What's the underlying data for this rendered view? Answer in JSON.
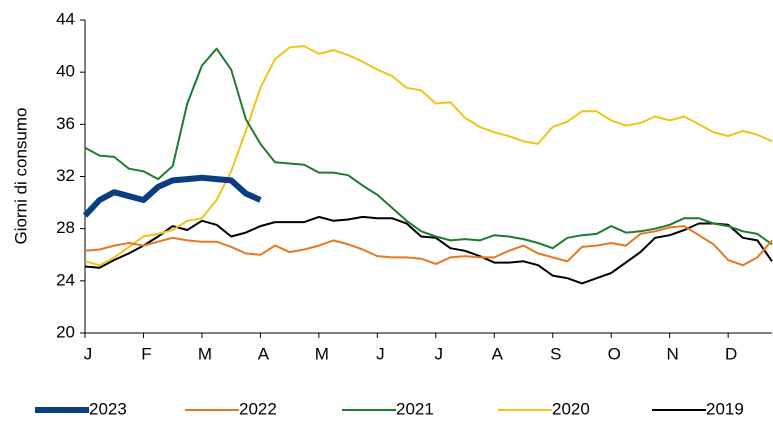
{
  "chart_data": {
    "type": "line",
    "y_label": "Giorni di consumo",
    "categories": [
      "J",
      null,
      null,
      null,
      "F",
      null,
      null,
      null,
      "M",
      null,
      null,
      null,
      "A",
      null,
      null,
      null,
      "M",
      null,
      null,
      null,
      "J",
      null,
      null,
      null,
      "J",
      null,
      null,
      null,
      "A",
      null,
      null,
      null,
      "S",
      null,
      null,
      null,
      "O",
      null,
      null,
      null,
      "N",
      null,
      null,
      null,
      "D",
      null,
      null,
      null
    ],
    "ylim": [
      20,
      44
    ],
    "yticks": [
      20,
      24,
      28,
      32,
      36,
      40,
      44
    ],
    "series": [
      {
        "name": "2023",
        "color": "#0b3d82",
        "values": [
          29.0,
          30.2,
          30.8,
          30.5,
          30.2,
          31.2,
          31.7,
          31.8,
          31.9,
          31.8,
          31.7,
          30.7,
          30.2,
          null,
          null,
          null,
          null,
          null,
          null,
          null,
          null,
          null,
          null,
          null,
          null,
          null,
          null,
          null,
          null,
          null,
          null,
          null,
          null,
          null,
          null,
          null,
          null,
          null,
          null,
          null,
          null,
          null,
          null,
          null,
          null,
          null,
          null,
          null
        ]
      },
      {
        "name": "2022",
        "color": "#e87722",
        "values": [
          26.3,
          26.4,
          26.7,
          26.9,
          26.7,
          27.0,
          27.3,
          27.1,
          27.0,
          27.0,
          26.6,
          26.1,
          26.0,
          26.7,
          26.2,
          26.4,
          26.7,
          27.1,
          26.8,
          26.4,
          25.9,
          25.8,
          25.8,
          25.7,
          25.3,
          25.8,
          25.9,
          25.8,
          25.8,
          26.3,
          26.7,
          26.1,
          25.8,
          25.5,
          26.6,
          26.7,
          26.9,
          26.7,
          27.6,
          27.8,
          28.1,
          28.2,
          27.5,
          26.8,
          25.6,
          25.2,
          25.8,
          27.1
        ]
      },
      {
        "name": "2021",
        "color": "#1e7b2f",
        "values": [
          34.2,
          33.6,
          33.5,
          32.6,
          32.4,
          31.8,
          32.8,
          37.6,
          40.5,
          41.8,
          40.2,
          36.4,
          34.5,
          33.1,
          33.0,
          32.9,
          32.3,
          32.3,
          32.1,
          31.3,
          30.6,
          29.6,
          28.6,
          27.8,
          27.4,
          27.1,
          27.2,
          27.1,
          27.5,
          27.4,
          27.2,
          26.9,
          26.5,
          27.3,
          27.5,
          27.6,
          28.2,
          27.7,
          27.8,
          28.0,
          28.3,
          28.8,
          28.8,
          28.4,
          28.2,
          27.8,
          27.6,
          26.8
        ]
      },
      {
        "name": "2020",
        "color": "#f0c419",
        "values": [
          25.5,
          25.2,
          25.8,
          26.6,
          27.4,
          27.6,
          27.9,
          28.6,
          28.8,
          30.2,
          32.4,
          35.5,
          38.8,
          41.0,
          41.9,
          42.0,
          41.4,
          41.7,
          41.3,
          40.8,
          40.2,
          39.7,
          38.8,
          38.6,
          37.6,
          37.7,
          36.5,
          35.8,
          35.4,
          35.1,
          34.7,
          34.5,
          35.8,
          36.2,
          37.0,
          37.0,
          36.3,
          35.9,
          36.1,
          36.6,
          36.3,
          36.6,
          36.0,
          35.4,
          35.1,
          35.5,
          35.2,
          34.7
        ]
      },
      {
        "name": "2019",
        "color": "#000000",
        "values": [
          25.1,
          25.0,
          25.6,
          26.1,
          26.7,
          27.4,
          28.2,
          27.9,
          28.6,
          28.3,
          27.4,
          27.7,
          28.2,
          28.5,
          28.5,
          28.5,
          28.9,
          28.6,
          28.7,
          28.9,
          28.8,
          28.8,
          28.4,
          27.4,
          27.3,
          26.5,
          26.3,
          25.9,
          25.4,
          25.4,
          25.5,
          25.2,
          24.4,
          24.2,
          23.8,
          24.2,
          24.6,
          25.4,
          26.2,
          27.3,
          27.5,
          27.9,
          28.4,
          28.4,
          28.3,
          27.3,
          27.1,
          25.5
        ]
      }
    ]
  }
}
